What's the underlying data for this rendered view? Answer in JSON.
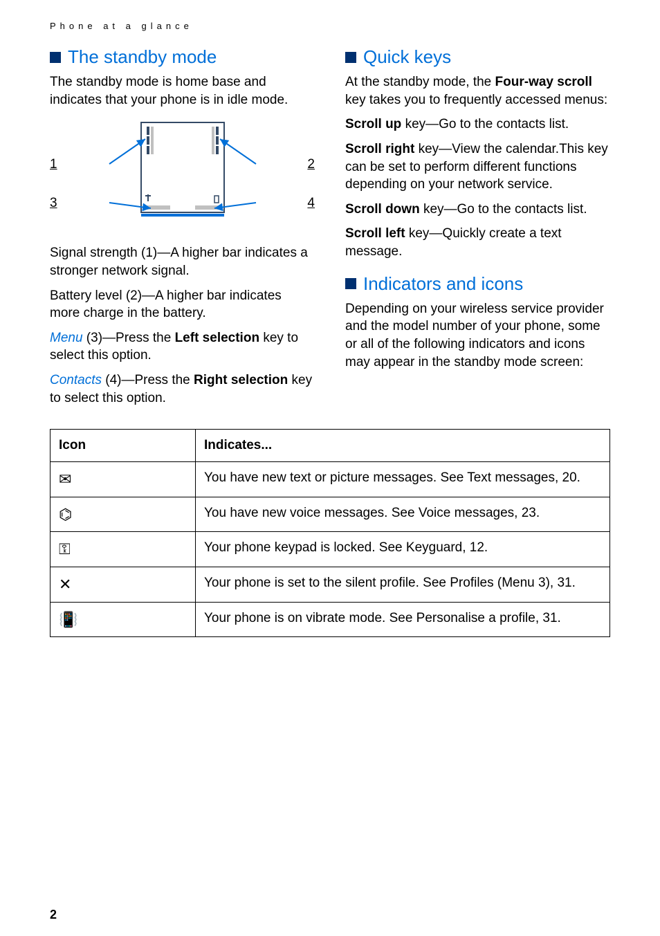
{
  "breadcrumb": "Phone at a glance",
  "colors": {
    "heading_blue": "#006FD8",
    "square_blue": "#003070",
    "body_text": "#000000",
    "link_blue": "#006FD8",
    "border": "#000000",
    "background": "#ffffff",
    "fig_outline": "#344A66",
    "fig_arrow": "#006FD8",
    "fig_gray": "#c0c0c0"
  },
  "typography": {
    "body_fontsize_pt": 14,
    "heading_fontsize_pt": 20,
    "breadcrumb_fontsize_pt": 10,
    "table_fontsize_pt": 14
  },
  "left": {
    "h1": "The standby mode",
    "p1": "The standby mode is home base and indicates that your phone is in idle mode.",
    "figure": {
      "labels": {
        "tl": "1",
        "tr": "2",
        "bl": "3",
        "br": "4"
      }
    },
    "p2": "Signal strength (1)—A higher bar indicates a stronger network signal.",
    "p3": "Battery level (2)—A higher bar indicates more charge in the battery.",
    "p4_link": "Menu",
    "p4_rest1": " (3)—Press the ",
    "p4_bold": "Left selection",
    "p4_rest2": " key to select this option.",
    "p5_link": "Contacts",
    "p5_rest1": " (4)—Press the ",
    "p5_bold": "Right selection",
    "p5_rest2": " key to select this option."
  },
  "right": {
    "h1": "Quick keys",
    "p1a": "At the standby mode, the ",
    "p1bold": "Four-way scroll",
    "p1b": " key takes you to frequently accessed menus:",
    "p2bold": "Scroll up",
    "p2": " key—Go to the contacts list.",
    "p3bold": "Scroll right",
    "p3": " key—View the calendar.This key can be set to perform different functions depending on your network service.",
    "p4bold": "Scroll down",
    "p4": " key—Go to the contacts list.",
    "p5bold": "Scroll left",
    "p5": " key—Quickly create a text message.",
    "h2": "Indicators and icons",
    "p6": "Depending on your wireless service provider and the model number of your phone, some or all of the following indicators and icons may appear in the standby mode screen:"
  },
  "table": {
    "header_icon": "Icon",
    "header_ind": "Indicates...",
    "rows": [
      {
        "icon_name": "envelope-icon",
        "glyph": "✉",
        "text": "You have new text or picture messages. See Text messages, 20."
      },
      {
        "icon_name": "voicemail-icon",
        "glyph": "⌬",
        "text": "You have new voice messages. See Voice messages, 23."
      },
      {
        "icon_name": "key-lock-icon",
        "glyph": "⚿",
        "text": "Your phone keypad is locked. See Keyguard, 12."
      },
      {
        "icon_name": "silent-icon",
        "glyph": "✕",
        "text": "Your phone is set to the silent profile. See Profiles (Menu 3), 31."
      },
      {
        "icon_name": "vibrate-icon",
        "glyph": "📳",
        "text": "Your phone is on vibrate mode. See Personalise a profile, 31."
      }
    ]
  },
  "page_number": "2"
}
